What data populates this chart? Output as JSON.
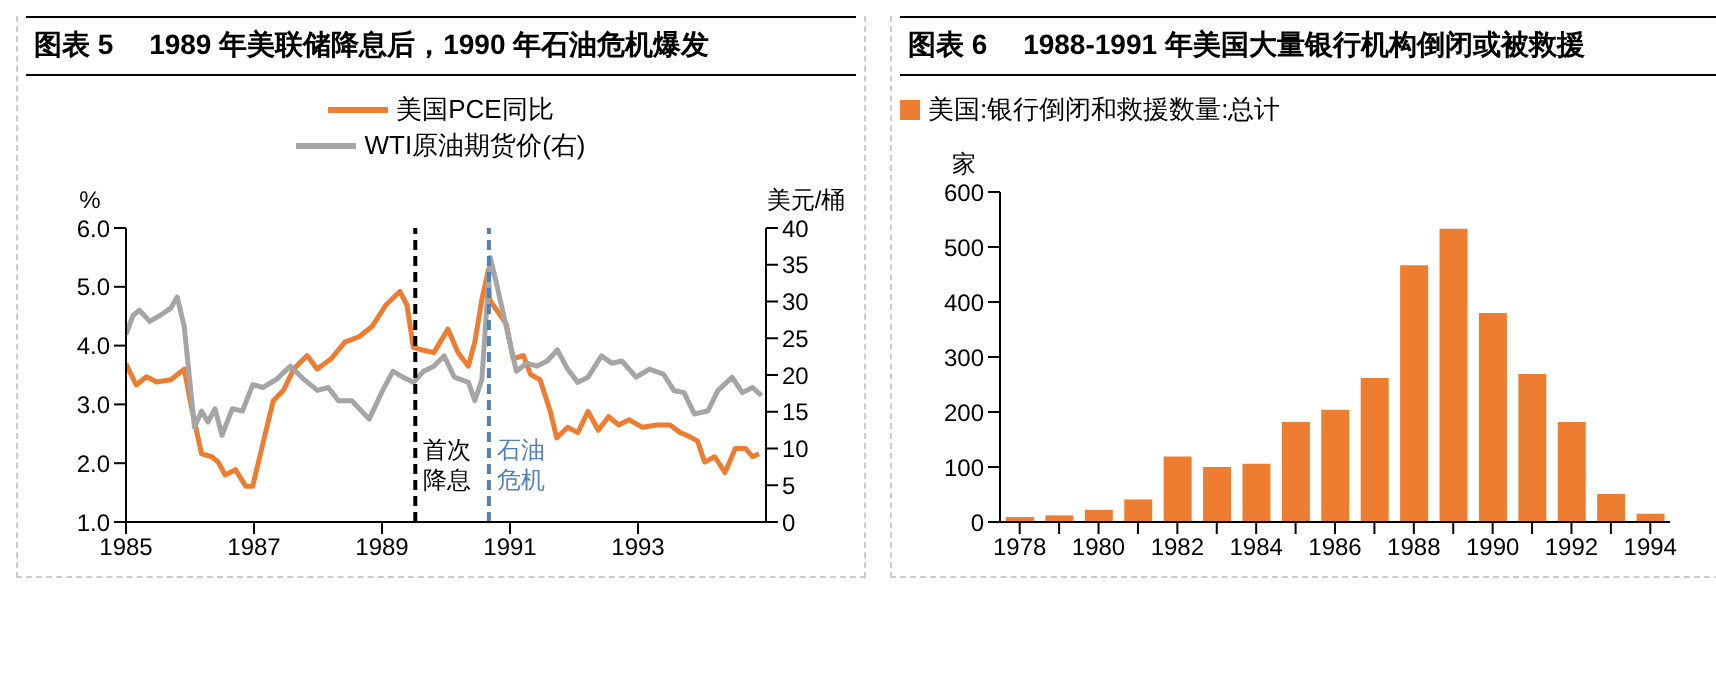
{
  "chart_data": [
    {
      "type": "line",
      "title": "图表 5　 1989 年美联储降息后，1990 年石油危机爆发",
      "ylabel": "%",
      "y2label": "美元/桶",
      "legend": "top",
      "xlim": [
        1985,
        1995
      ],
      "xticks": [
        1985,
        1987,
        1989,
        1991,
        1993
      ],
      "ylim": [
        1,
        6
      ],
      "yticks": [
        {
          "value": 1,
          "label": "1.0"
        },
        {
          "value": 2,
          "label": "2.0"
        },
        {
          "value": 3,
          "label": "3.0"
        },
        {
          "value": 4,
          "label": "4.0"
        },
        {
          "value": 5,
          "label": "5.0"
        },
        {
          "value": 6,
          "label": "6.0"
        }
      ],
      "y2lim": [
        0,
        40
      ],
      "y2ticks": [
        0,
        5,
        10,
        15,
        20,
        25,
        30,
        35,
        40
      ],
      "line_style": "solid",
      "marker": "none",
      "series": [
        {
          "name": "美国PCE同比",
          "color": "#ed7d31",
          "x": [
            1985.0,
            1985.16,
            1985.32,
            1985.48,
            1985.7,
            1985.91,
            1986.02,
            1986.18,
            1986.34,
            1986.44,
            1986.55,
            1986.71,
            1986.87,
            1986.98,
            1987.14,
            1987.3,
            1987.46,
            1987.62,
            1987.83,
            1987.99,
            1988.21,
            1988.42,
            1988.64,
            1988.85,
            1989.06,
            1989.28,
            1989.39,
            1989.49,
            1989.65,
            1989.81,
            1990.03,
            1990.19,
            1990.35,
            1990.45,
            1990.56,
            1990.66,
            1990.68,
            1990.94,
            1991.05,
            1991.21,
            1991.32,
            1991.47,
            1991.63,
            1991.73,
            1991.9,
            1992.06,
            1992.22,
            1992.38,
            1992.54,
            1992.7,
            1992.86,
            1993.07,
            1993.29,
            1993.5,
            1993.66,
            1993.77,
            1993.93,
            1994.04,
            1994.2,
            1994.36,
            1994.52,
            1994.68,
            1994.79,
            1994.89
          ],
          "values": [
            3.69,
            3.33,
            3.47,
            3.38,
            3.42,
            3.6,
            2.97,
            2.16,
            2.11,
            2.02,
            1.8,
            1.89,
            1.61,
            1.61,
            2.34,
            3.06,
            3.24,
            3.6,
            3.83,
            3.6,
            3.78,
            4.06,
            4.15,
            4.33,
            4.69,
            4.92,
            4.69,
            3.97,
            3.92,
            3.88,
            4.28,
            3.88,
            3.65,
            4.06,
            4.78,
            5.28,
            4.78,
            4.37,
            3.78,
            3.83,
            3.51,
            3.42,
            2.88,
            2.43,
            2.61,
            2.52,
            2.88,
            2.56,
            2.79,
            2.65,
            2.74,
            2.61,
            2.65,
            2.65,
            2.52,
            2.47,
            2.38,
            2.02,
            2.11,
            1.84,
            2.25,
            2.25,
            2.11,
            2.16
          ]
        },
        {
          "name": "WTI原油期货价(右)",
          "color": "#a5a5a5",
          "axis": "y2",
          "x": [
            1985.0,
            1985.11,
            1985.21,
            1985.37,
            1985.53,
            1985.7,
            1985.8,
            1985.91,
            1986.07,
            1986.18,
            1986.28,
            1986.39,
            1986.5,
            1986.66,
            1986.82,
            1986.98,
            1987.14,
            1987.35,
            1987.57,
            1987.78,
            1987.99,
            1988.16,
            1988.32,
            1988.53,
            1988.8,
            1989.01,
            1989.17,
            1989.33,
            1989.49,
            1989.65,
            1989.81,
            1989.97,
            1990.13,
            1990.35,
            1990.45,
            1990.56,
            1990.69,
            1990.78,
            1990.94,
            1991.1,
            1991.26,
            1991.42,
            1991.58,
            1991.74,
            1991.9,
            1992.06,
            1992.22,
            1992.43,
            1992.59,
            1992.75,
            1992.97,
            1993.18,
            1993.4,
            1993.56,
            1993.72,
            1993.88,
            1994.09,
            1994.25,
            1994.47,
            1994.63,
            1994.79,
            1994.93
          ],
          "values": [
            25.5,
            28.1,
            28.8,
            27.3,
            28.1,
            29.1,
            30.6,
            26.6,
            12.9,
            15.1,
            13.6,
            15.4,
            11.8,
            15.4,
            15.1,
            18.7,
            18.3,
            19.4,
            21.2,
            19.4,
            17.9,
            18.3,
            16.5,
            16.5,
            14.0,
            17.9,
            20.5,
            19.7,
            19.0,
            20.5,
            21.2,
            22.6,
            19.7,
            19.0,
            16.5,
            19.4,
            36.0,
            32.8,
            26.6,
            20.5,
            21.6,
            21.2,
            21.9,
            23.4,
            20.8,
            19.0,
            19.7,
            22.6,
            21.6,
            21.9,
            19.7,
            20.8,
            20.1,
            17.9,
            17.6,
            14.7,
            15.1,
            17.9,
            19.7,
            17.6,
            18.3,
            17.2
          ]
        }
      ],
      "ref_lines": [
        {
          "axis": "x",
          "value": 1989.52,
          "label": "首次降息",
          "color": "#000000",
          "line_style": "dashed"
        },
        {
          "axis": "x",
          "value": 1990.67,
          "label": "石油危机",
          "color": "#4f81bd",
          "line_style": "dashed"
        }
      ]
    },
    {
      "type": "bar",
      "title": "图表 6　 1988-1991 年美国大量银行机构倒闭或被救援",
      "ylabel": "家",
      "legend": "top",
      "categories": [
        "1978",
        null,
        "1980",
        null,
        "1982",
        null,
        "1984",
        null,
        "1986",
        null,
        "1988",
        null,
        "1990",
        null,
        "1992",
        null,
        "1994"
      ],
      "ylim": [
        0,
        600
      ],
      "yticks": [
        0,
        100,
        200,
        300,
        400,
        500,
        600
      ],
      "series": [
        {
          "name": "美国:银行倒闭和救援数量:总计",
          "color": "#ed7d31",
          "values": [
            9,
            12,
            22,
            41,
            119,
            100,
            106,
            182,
            204,
            262,
            467,
            533,
            380,
            269,
            182,
            51,
            15
          ]
        }
      ]
    }
  ]
}
